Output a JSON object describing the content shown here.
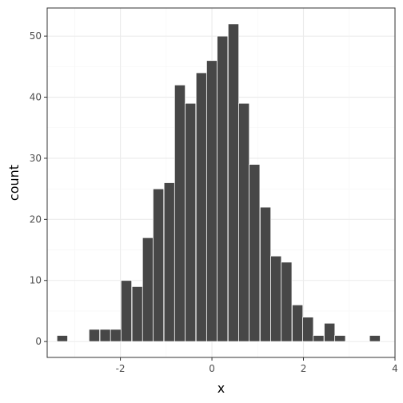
{
  "chart_data": {
    "type": "bar",
    "title": "",
    "xlabel": "x",
    "ylabel": "count",
    "xlim": [
      -3.6,
      4.0
    ],
    "ylim": [
      -2.6,
      54.6
    ],
    "x_ticks": [
      -2,
      0,
      2,
      4
    ],
    "x_tick_labels": [
      "-2",
      "0",
      "2",
      "4"
    ],
    "y_ticks": [
      0,
      10,
      20,
      30,
      40,
      50
    ],
    "y_tick_labels": [
      "0",
      "10",
      "20",
      "30",
      "40",
      "50"
    ],
    "bin_width": 0.2333,
    "bin_centers": [
      -3.27,
      -2.57,
      -2.33,
      -2.1,
      -1.87,
      -1.63,
      -1.4,
      -1.17,
      -0.93,
      -0.7,
      -0.47,
      -0.23,
      0.0,
      0.23,
      0.47,
      0.7,
      0.93,
      1.17,
      1.4,
      1.63,
      1.87,
      2.1,
      2.33,
      2.57,
      2.8,
      3.56
    ],
    "values": [
      1,
      2,
      2,
      2,
      10,
      9,
      17,
      25,
      26,
      42,
      39,
      44,
      46,
      50,
      52,
      39,
      29,
      22,
      14,
      13,
      6,
      4,
      1,
      3,
      1,
      1
    ],
    "grid": true,
    "legend": "none",
    "colors": {
      "bar_fill": "#474747",
      "bar_outline": "#ffffff",
      "panel_border": "#333333",
      "grid_major": "#ebebeb",
      "grid_minor": "#f5f5f5"
    }
  }
}
